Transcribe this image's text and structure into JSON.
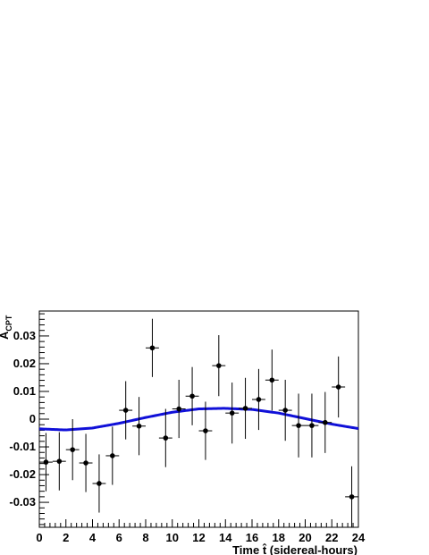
{
  "chart_data": {
    "type": "scatter",
    "title": "",
    "xlabel": "Time t̂  (sidereal-hours)",
    "ylabel": "A",
    "ylabel_subscript": "CPT",
    "xlim": [
      0,
      24
    ],
    "ylim": [
      -0.039,
      0.039
    ],
    "x_ticks": [
      0,
      2,
      4,
      6,
      8,
      10,
      12,
      14,
      16,
      18,
      20,
      22,
      24
    ],
    "y_ticks": [
      -0.03,
      -0.02,
      -0.01,
      0,
      0.01,
      0.02,
      0.03
    ],
    "y_tick_labels": [
      "-0.03",
      "-0.02",
      "-0.01",
      "0",
      "0.01",
      "0.02",
      "0.03"
    ],
    "grid": false,
    "legend": "none",
    "series": [
      {
        "type": "points-with-errors",
        "color": "#000000",
        "x": [
          0.5,
          1.5,
          2.5,
          3.5,
          4.5,
          5.5,
          6.5,
          7.5,
          8.5,
          9.5,
          10.5,
          11.5,
          12.5,
          13.5,
          14.5,
          15.5,
          16.5,
          17.5,
          18.5,
          19.5,
          20.5,
          21.5,
          22.5,
          23.5
        ],
        "y": [
          -0.0155,
          -0.0152,
          -0.011,
          -0.0158,
          -0.0232,
          -0.0132,
          0.0032,
          -0.0025,
          0.0257,
          -0.0068,
          0.0037,
          0.0083,
          -0.0042,
          0.0193,
          0.0022,
          0.0039,
          0.0071,
          0.0141,
          0.0032,
          -0.0023,
          -0.0023,
          -0.0012,
          0.0116,
          -0.028
        ],
        "y_err": [
          0.0105,
          0.0105,
          0.011,
          0.0105,
          0.0105,
          0.0105,
          0.0105,
          0.0105,
          0.0105,
          0.0105,
          0.0105,
          0.0105,
          0.0105,
          0.011,
          0.011,
          0.011,
          0.011,
          0.011,
          0.011,
          0.0115,
          0.0115,
          0.011,
          0.011,
          0.011
        ],
        "x_err": 0.5
      },
      {
        "type": "curve",
        "color": "#1010d8",
        "function": "sinusoid",
        "x": [
          0,
          2,
          4,
          6,
          8,
          10,
          12,
          13.9,
          16,
          18,
          20,
          22,
          24
        ],
        "y": [
          -0.0035,
          -0.0039,
          -0.0032,
          -0.0015,
          0.0006,
          0.0025,
          0.0037,
          0.0039,
          0.0035,
          0.0022,
          0.0002,
          -0.0018,
          -0.0034
        ]
      }
    ]
  }
}
